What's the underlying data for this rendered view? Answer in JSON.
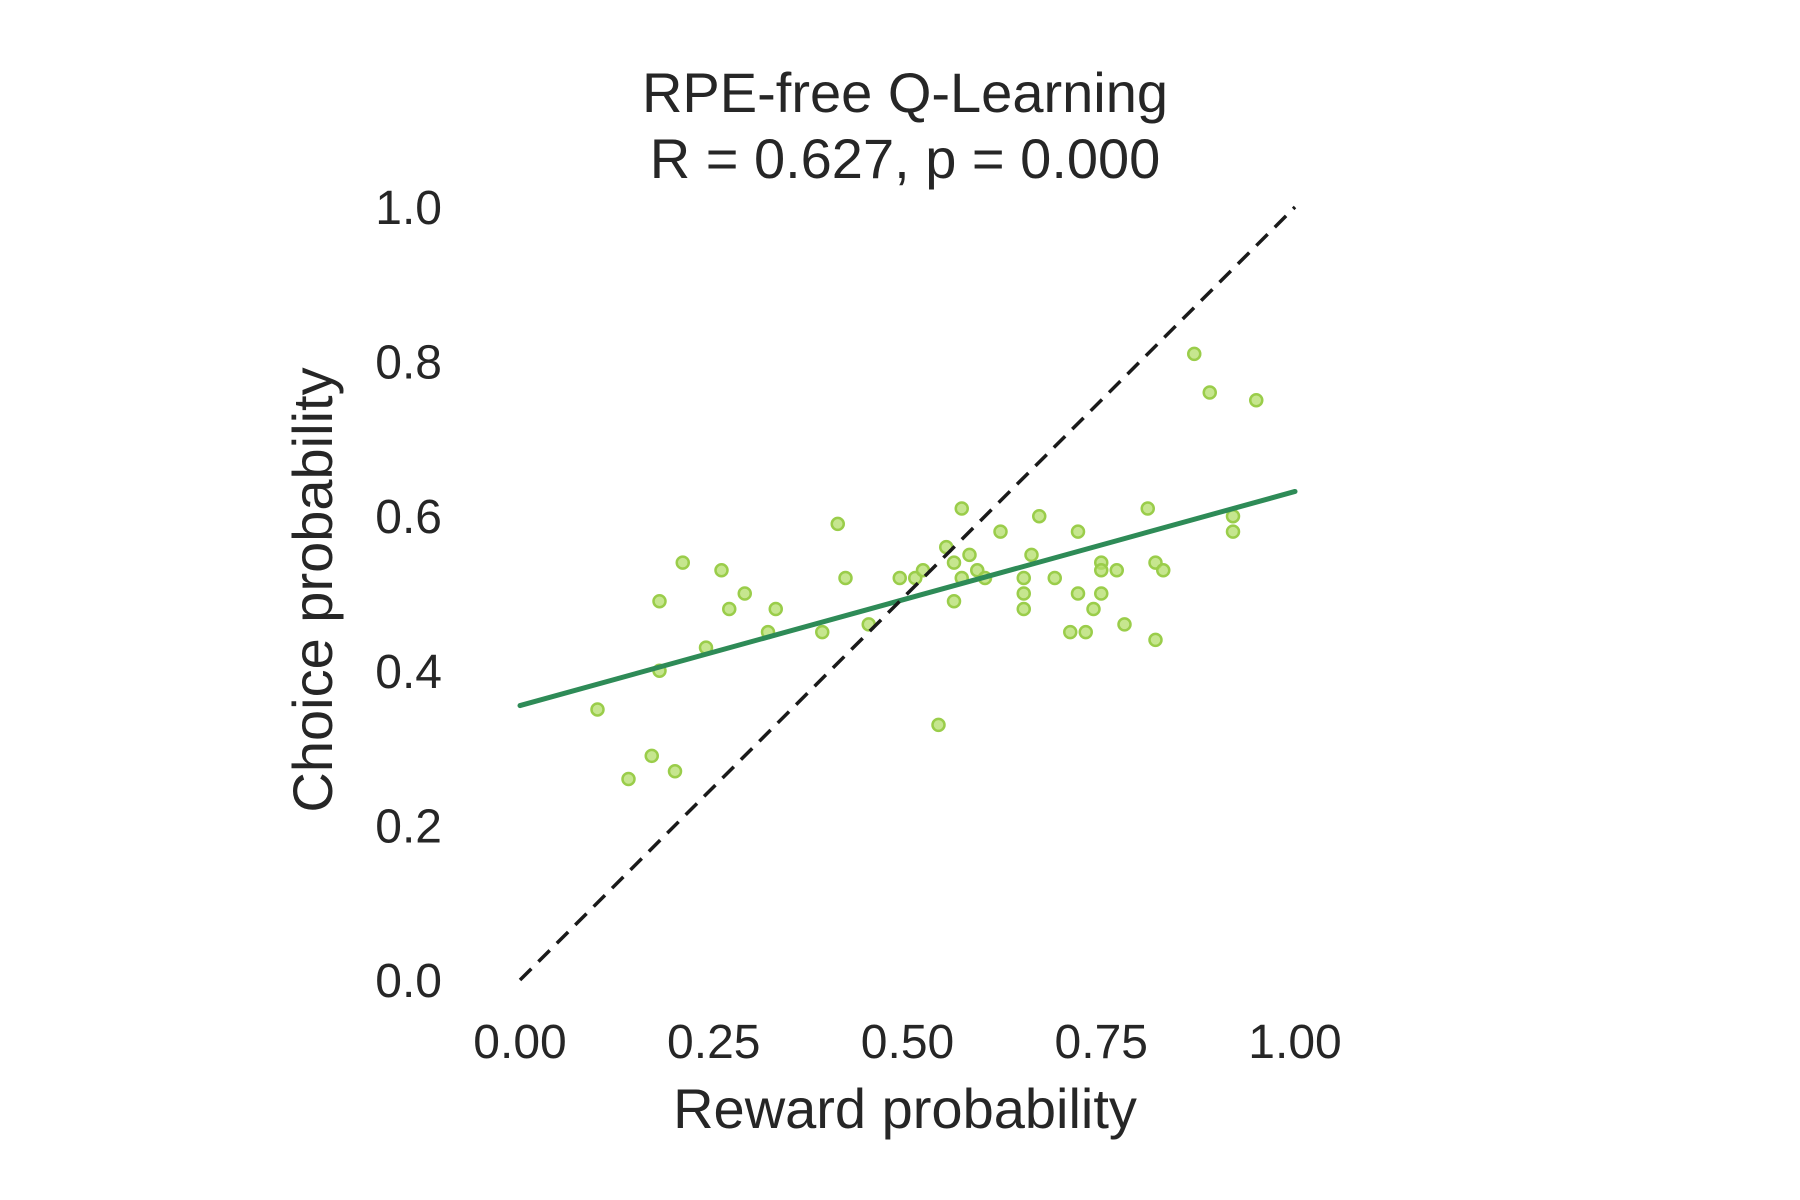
{
  "chart_data": {
    "type": "scatter",
    "title": "RPE-free Q-Learning",
    "subtitle": "R = 0.627, p = 0.000",
    "xlabel": "Reward probability",
    "ylabel": "Choice probability",
    "xlim": [
      0.0,
      1.0
    ],
    "ylim": [
      0.0,
      1.0
    ],
    "xticks": [
      "0.00",
      "0.25",
      "0.50",
      "0.75",
      "1.00"
    ],
    "yticks": [
      "0.0",
      "0.2",
      "0.4",
      "0.6",
      "0.8",
      "1.0"
    ],
    "grid": false,
    "colors": {
      "points": "#b3de69",
      "point_edge": "#9acd4a",
      "fit_line": "#2e8b57",
      "identity_line": "#1a1a1a",
      "text": "#262626"
    },
    "series": [
      {
        "kind": "points",
        "x": [
          0.1,
          0.14,
          0.17,
          0.18,
          0.18,
          0.2,
          0.21,
          0.24,
          0.26,
          0.27,
          0.29,
          0.32,
          0.33,
          0.39,
          0.41,
          0.42,
          0.45,
          0.49,
          0.51,
          0.52,
          0.54,
          0.55,
          0.56,
          0.56,
          0.57,
          0.57,
          0.58,
          0.59,
          0.6,
          0.62,
          0.65,
          0.65,
          0.65,
          0.66,
          0.67,
          0.69,
          0.71,
          0.72,
          0.72,
          0.73,
          0.74,
          0.75,
          0.75,
          0.75,
          0.77,
          0.78,
          0.81,
          0.82,
          0.82,
          0.83,
          0.87,
          0.89,
          0.92,
          0.92,
          0.95
        ],
        "y": [
          0.35,
          0.26,
          0.29,
          0.49,
          0.4,
          0.27,
          0.54,
          0.43,
          0.53,
          0.48,
          0.5,
          0.45,
          0.48,
          0.45,
          0.59,
          0.52,
          0.46,
          0.52,
          0.52,
          0.53,
          0.33,
          0.56,
          0.54,
          0.49,
          0.61,
          0.52,
          0.55,
          0.53,
          0.52,
          0.58,
          0.52,
          0.48,
          0.5,
          0.55,
          0.6,
          0.52,
          0.45,
          0.5,
          0.58,
          0.45,
          0.48,
          0.54,
          0.5,
          0.53,
          0.53,
          0.46,
          0.61,
          0.44,
          0.54,
          0.53,
          0.81,
          0.76,
          0.58,
          0.6,
          0.75
        ]
      },
      {
        "kind": "fit",
        "x": [
          0.0,
          1.0
        ],
        "y": [
          0.355,
          0.632
        ]
      },
      {
        "kind": "identity",
        "x": [
          0.0,
          1.0
        ],
        "y": [
          0.0,
          1.0
        ]
      }
    ]
  }
}
